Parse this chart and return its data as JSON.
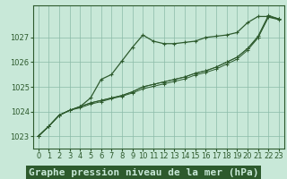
{
  "title": "Graphe pression niveau de la mer (hPa)",
  "bg_color": "#c8e8d8",
  "grid_color": "#8bbba8",
  "line_color": "#2d5a2d",
  "label_bg": "#2d5a2d",
  "label_fg": "#c8e8d8",
  "xlim": [
    -0.5,
    23.5
  ],
  "ylim": [
    1022.5,
    1028.3
  ],
  "yticks": [
    1023,
    1024,
    1025,
    1026,
    1027
  ],
  "xticks": [
    0,
    1,
    2,
    3,
    4,
    5,
    6,
    7,
    8,
    9,
    10,
    11,
    12,
    13,
    14,
    15,
    16,
    17,
    18,
    19,
    20,
    21,
    22,
    23
  ],
  "series": [
    [
      1023.0,
      1023.4,
      1023.85,
      1024.05,
      1024.2,
      1024.55,
      1025.3,
      1025.5,
      1026.05,
      1026.6,
      1027.1,
      1026.85,
      1026.75,
      1026.75,
      1026.8,
      1026.85,
      1027.0,
      1027.05,
      1027.1,
      1027.2,
      1027.6,
      1027.85,
      1027.85,
      1027.75
    ],
    [
      1023.0,
      1023.4,
      1023.85,
      1024.05,
      1024.2,
      1024.35,
      1024.45,
      1024.55,
      1024.65,
      1024.8,
      1025.0,
      1025.1,
      1025.2,
      1025.3,
      1025.4,
      1025.55,
      1025.65,
      1025.8,
      1026.0,
      1026.2,
      1026.55,
      1027.0,
      1027.85,
      1027.75
    ],
    [
      1023.0,
      1023.4,
      1023.85,
      1024.05,
      1024.2,
      1024.35,
      1024.45,
      1024.55,
      1024.65,
      1024.8,
      1025.0,
      1025.1,
      1025.2,
      1025.3,
      1025.4,
      1025.55,
      1025.65,
      1025.8,
      1026.0,
      1026.2,
      1026.55,
      1027.05,
      1027.9,
      1027.75
    ],
    [
      1023.0,
      1023.4,
      1023.85,
      1024.05,
      1024.15,
      1024.3,
      1024.4,
      1024.52,
      1024.62,
      1024.75,
      1024.92,
      1025.02,
      1025.12,
      1025.22,
      1025.32,
      1025.48,
      1025.58,
      1025.72,
      1025.92,
      1026.12,
      1026.48,
      1026.98,
      1027.82,
      1027.72
    ]
  ],
  "title_fontsize": 8,
  "tick_fontsize": 6
}
